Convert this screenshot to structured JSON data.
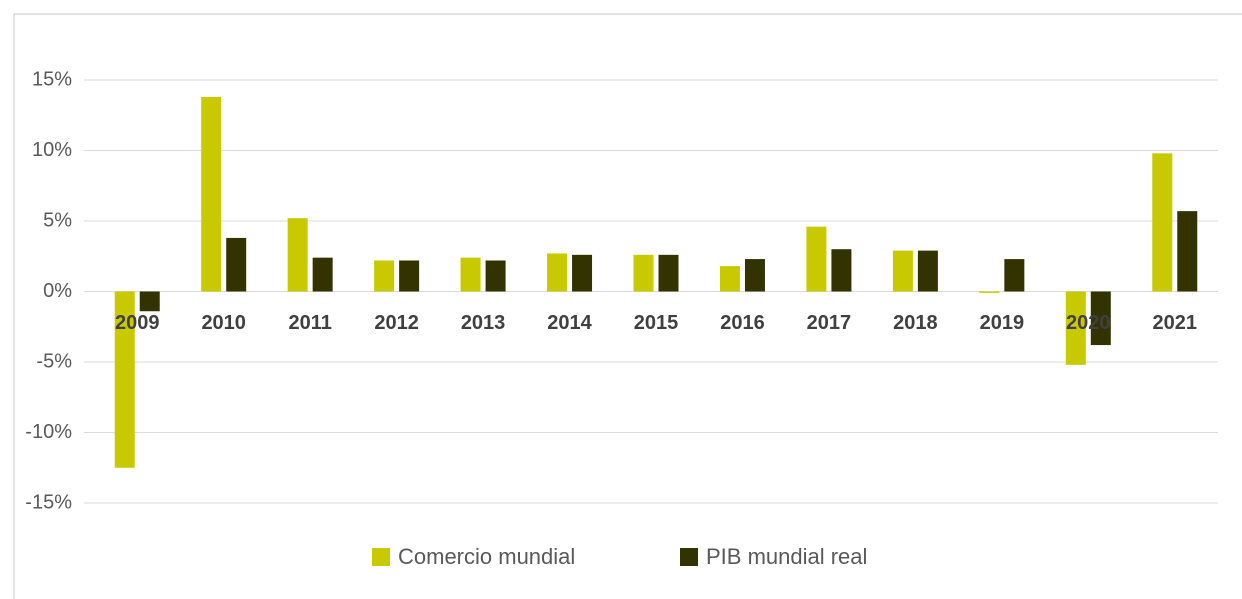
{
  "chart_data": {
    "type": "bar",
    "categories": [
      "2009",
      "2010",
      "2011",
      "2012",
      "2013",
      "2014",
      "2015",
      "2016",
      "2017",
      "2018",
      "2019",
      "2020",
      "2021"
    ],
    "series": [
      {
        "name": "Comercio mundial",
        "color": "#c9c900",
        "values": [
          -12.5,
          13.8,
          5.2,
          2.2,
          2.4,
          2.7,
          2.6,
          1.8,
          4.6,
          2.9,
          -0.1,
          -5.2,
          9.8
        ]
      },
      {
        "name": "PIB mundial real",
        "color": "#333300",
        "values": [
          -1.4,
          3.8,
          2.4,
          2.2,
          2.2,
          2.6,
          2.6,
          2.3,
          3.0,
          2.9,
          2.3,
          -3.8,
          5.7
        ]
      }
    ],
    "ylim": [
      -15,
      15
    ],
    "yticks": [
      {
        "value": -15,
        "label": "-15%"
      },
      {
        "value": -10,
        "label": "-10%"
      },
      {
        "value": -5,
        "label": "-5%"
      },
      {
        "value": 0,
        "label": "0%"
      },
      {
        "value": 5,
        "label": "5%"
      },
      {
        "value": 10,
        "label": "10%"
      },
      {
        "value": 15,
        "label": "15%"
      }
    ],
    "grid": true,
    "legend": "bottom"
  }
}
